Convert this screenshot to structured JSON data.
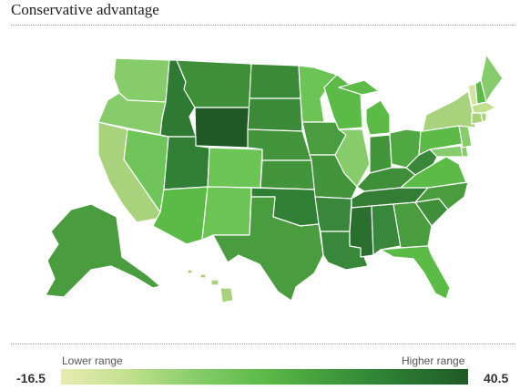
{
  "title": "Conservative advantage",
  "legend": {
    "min": "-16.5",
    "max": "40.5",
    "lower_label": "Lower range",
    "higher_label": "Higher range",
    "color_stops": [
      "#e8ebb0",
      "#c1e08e",
      "#86cc6a",
      "#5cba47",
      "#3f9a3c",
      "#2a7a33",
      "#1f5a26"
    ]
  },
  "map_data": {
    "region": "United States",
    "color_scale": {
      "min": -16.5,
      "max": 40.5,
      "low_color": "#e8ebb0",
      "high_color": "#1f5a26"
    },
    "states": [
      {
        "id": "WA",
        "color": "#86cc6a"
      },
      {
        "id": "OR",
        "color": "#86cc6a"
      },
      {
        "id": "CA",
        "color": "#a8d37c"
      },
      {
        "id": "NV",
        "color": "#6fc55a"
      },
      {
        "id": "ID",
        "color": "#2e7a33"
      },
      {
        "id": "MT",
        "color": "#3f8f3a"
      },
      {
        "id": "WY",
        "color": "#1f5a26"
      },
      {
        "id": "UT",
        "color": "#2f7f35"
      },
      {
        "id": "AZ",
        "color": "#5cba47"
      },
      {
        "id": "CO",
        "color": "#6cc455"
      },
      {
        "id": "NM",
        "color": "#6cc455"
      },
      {
        "id": "ND",
        "color": "#3a8a37"
      },
      {
        "id": "SD",
        "color": "#3a8a37"
      },
      {
        "id": "NE",
        "color": "#43953b"
      },
      {
        "id": "KS",
        "color": "#43953b"
      },
      {
        "id": "OK",
        "color": "#2f7f35"
      },
      {
        "id": "TX",
        "color": "#4a9d3f"
      },
      {
        "id": "MN",
        "color": "#6cc455"
      },
      {
        "id": "IA",
        "color": "#4a9d3f"
      },
      {
        "id": "MO",
        "color": "#43953b"
      },
      {
        "id": "AR",
        "color": "#38873a"
      },
      {
        "id": "LA",
        "color": "#38873a"
      },
      {
        "id": "WI",
        "color": "#5cba47"
      },
      {
        "id": "IL",
        "color": "#86cc6a"
      },
      {
        "id": "MI",
        "color": "#5cba47"
      },
      {
        "id": "IN",
        "color": "#43953b"
      },
      {
        "id": "OH",
        "color": "#4fa842"
      },
      {
        "id": "KY",
        "color": "#3f8f3a"
      },
      {
        "id": "TN",
        "color": "#337d35"
      },
      {
        "id": "MS",
        "color": "#2a6f2e"
      },
      {
        "id": "AL",
        "color": "#38873a"
      },
      {
        "id": "GA",
        "color": "#4a9d3f"
      },
      {
        "id": "FL",
        "color": "#5cba47"
      },
      {
        "id": "SC",
        "color": "#3f8f3a"
      },
      {
        "id": "NC",
        "color": "#4a9d3f"
      },
      {
        "id": "VA",
        "color": "#5cba47"
      },
      {
        "id": "WV",
        "color": "#38873a"
      },
      {
        "id": "PA",
        "color": "#5cba47"
      },
      {
        "id": "NY",
        "color": "#a8d37c"
      },
      {
        "id": "VT",
        "color": "#d4e4a0"
      },
      {
        "id": "NH",
        "color": "#5cba47"
      },
      {
        "id": "ME",
        "color": "#86cc6a"
      },
      {
        "id": "MA",
        "color": "#c1e08e"
      },
      {
        "id": "CT",
        "color": "#a8d37c"
      },
      {
        "id": "RI",
        "color": "#a8d37c"
      },
      {
        "id": "NJ",
        "color": "#86cc6a"
      },
      {
        "id": "DE",
        "color": "#86cc6a"
      },
      {
        "id": "MD",
        "color": "#86cc6a"
      },
      {
        "id": "AK",
        "color": "#4a9d3f"
      },
      {
        "id": "HI",
        "color": "#a8d37c"
      }
    ]
  }
}
